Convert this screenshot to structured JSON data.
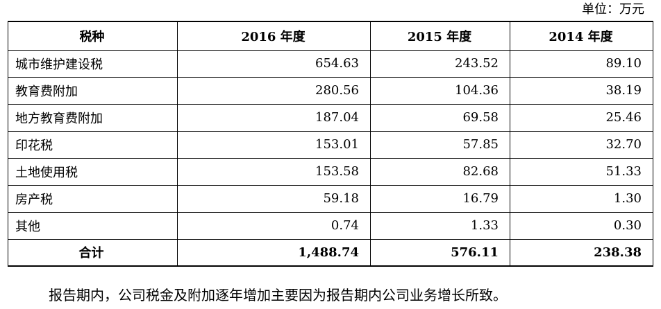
{
  "unit_label": "单位：万元",
  "table": {
    "headers": [
      "税种",
      "2016 年度",
      "2015 年度",
      "2014 年度"
    ],
    "rows": [
      {
        "name": "城市维护建设税",
        "y2016": "654.63",
        "y2015": "243.52",
        "y2014": "89.10"
      },
      {
        "name": "教育费附加",
        "y2016": "280.56",
        "y2015": "104.36",
        "y2014": "38.19"
      },
      {
        "name": "地方教育费附加",
        "y2016": "187.04",
        "y2015": "69.58",
        "y2014": "25.46"
      },
      {
        "name": "印花税",
        "y2016": "153.01",
        "y2015": "57.85",
        "y2014": "32.70"
      },
      {
        "name": "土地使用税",
        "y2016": "153.58",
        "y2015": "82.68",
        "y2014": "51.33"
      },
      {
        "name": "房产税",
        "y2016": "59.18",
        "y2015": "16.79",
        "y2014": "1.30"
      },
      {
        "name": "其他",
        "y2016": "0.74",
        "y2015": "1.33",
        "y2014": "0.30"
      }
    ],
    "total": {
      "name": "合计",
      "y2016": "1,488.74",
      "y2015": "576.11",
      "y2014": "238.38"
    }
  },
  "note": "报告期内，公司税金及附加逐年增加主要因为报告期内公司业务增长所致。"
}
